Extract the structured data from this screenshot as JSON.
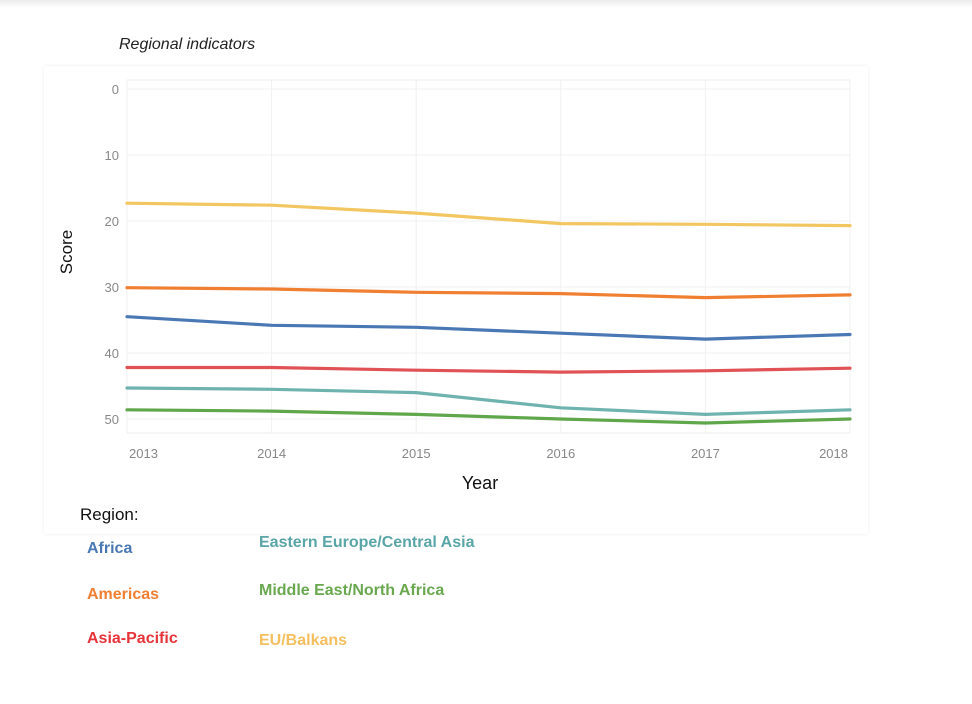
{
  "chart_data": {
    "type": "line",
    "title": "Regional indicators",
    "xlabel": "Year",
    "ylabel": "Score",
    "x": [
      2013,
      2014,
      2015,
      2016,
      2017,
      2018
    ],
    "ylim": [
      0,
      52
    ],
    "y_inverted": true,
    "yticks": [
      0,
      10,
      20,
      30,
      40,
      50
    ],
    "grid": true,
    "legend_title": "Region:",
    "legend_position": "bottom",
    "series": [
      {
        "name": "Africa",
        "color": "#4a78b5",
        "values": [
          34.5,
          35.8,
          36.1,
          37.0,
          37.9,
          37.2
        ]
      },
      {
        "name": "Americas",
        "color": "#f07f32",
        "values": [
          30.1,
          30.3,
          30.8,
          31.0,
          31.6,
          31.2
        ]
      },
      {
        "name": "Asia-Pacific",
        "color": "#e05256",
        "values": [
          42.2,
          42.2,
          42.6,
          42.9,
          42.7,
          42.3
        ]
      },
      {
        "name": "Eastern Europe/Central Asia",
        "color": "#6fb3ae",
        "values": [
          45.3,
          45.5,
          46.0,
          48.3,
          49.3,
          48.6
        ]
      },
      {
        "name": "Middle East/North Africa",
        "color": "#5fa74a",
        "values": [
          48.6,
          48.8,
          49.3,
          50.0,
          50.6,
          50.0
        ]
      },
      {
        "name": "EU/Balkans",
        "color": "#f2c660",
        "values": [
          17.3,
          17.6,
          18.8,
          20.4,
          20.5,
          20.7
        ]
      }
    ]
  },
  "legend_items": [
    {
      "label": "Africa",
      "color": "#4a78b5"
    },
    {
      "label": "Americas",
      "color": "#f07f32"
    },
    {
      "label": "Asia-Pacific",
      "color": "#e6343a"
    },
    {
      "label": "Eastern Europe/Central Asia",
      "color": "#5aa5a7"
    },
    {
      "label": "Middle East/North Africa",
      "color": "#6aa84f"
    },
    {
      "label": "EU/Balkans",
      "color": "#f5bf60"
    }
  ]
}
